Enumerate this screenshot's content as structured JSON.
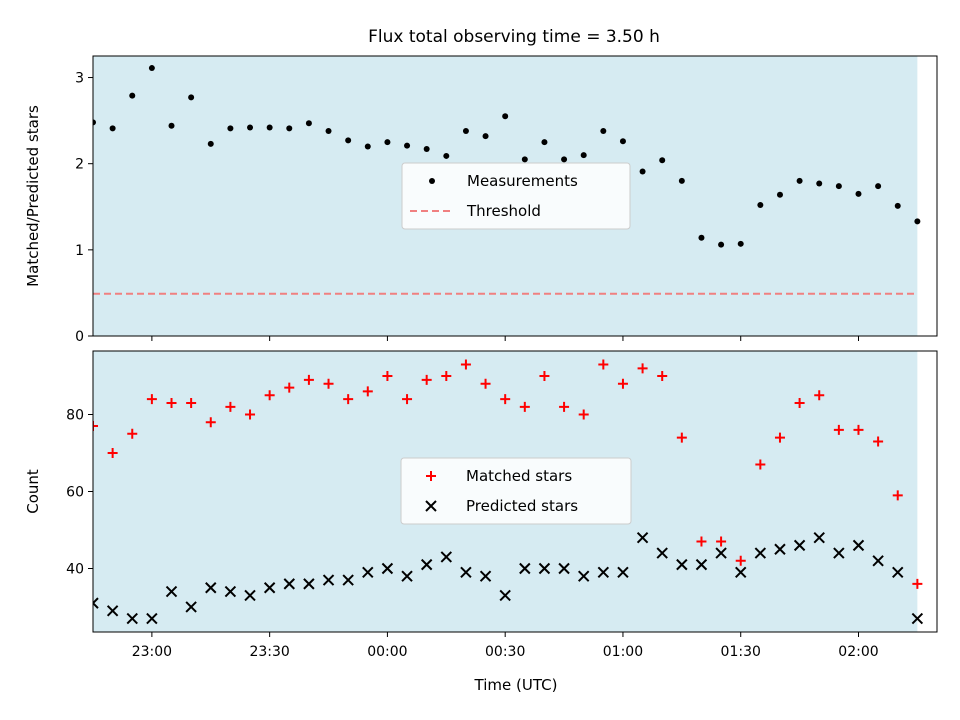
{
  "figure": {
    "title": "Flux total observing time = 3.50 h"
  },
  "chart_data": [
    {
      "type": "scatter",
      "title": "Flux total observing time = 3.50 h",
      "xlabel": "",
      "ylabel": "Matched/Predicted stars",
      "xlim": [
        "22:45",
        "02:20"
      ],
      "ylim": [
        0,
        3.25
      ],
      "yticks": [
        0,
        1,
        2,
        3
      ],
      "xticks": [
        "23:00",
        "23:30",
        "00:00",
        "00:30",
        "01:00",
        "01:30",
        "02:00"
      ],
      "x_tick_labels_shown": false,
      "shaded_span": {
        "from": "22:45",
        "to": "02:15",
        "color": "#add8e6"
      },
      "grid": false,
      "legend": "center",
      "series": [
        {
          "name": "Measurements",
          "marker": "dot",
          "color": "#000000",
          "x": [
            "22:45",
            "22:50",
            "22:55",
            "23:00",
            "23:05",
            "23:10",
            "23:15",
            "23:20",
            "23:25",
            "23:30",
            "23:35",
            "23:40",
            "23:45",
            "23:50",
            "23:55",
            "00:00",
            "00:05",
            "00:10",
            "00:15",
            "00:20",
            "00:25",
            "00:30",
            "00:35",
            "00:40",
            "00:45",
            "00:50",
            "00:55",
            "01:00",
            "01:05",
            "01:10",
            "01:15",
            "01:20",
            "01:25",
            "01:30",
            "01:35",
            "01:40",
            "01:45",
            "01:50",
            "01:55",
            "02:00",
            "02:05",
            "02:10",
            "02:15"
          ],
          "y": [
            2.48,
            2.41,
            2.79,
            3.11,
            2.44,
            2.77,
            2.23,
            2.41,
            2.42,
            2.42,
            2.41,
            2.47,
            2.38,
            2.27,
            2.2,
            2.25,
            2.21,
            2.17,
            2.09,
            2.38,
            2.32,
            2.55,
            2.05,
            2.25,
            2.05,
            2.1,
            2.38,
            2.26,
            1.91,
            2.04,
            1.8,
            1.14,
            1.06,
            1.07,
            1.52,
            1.64,
            1.8,
            1.77,
            1.74,
            1.65,
            1.74,
            1.51,
            1.33
          ]
        },
        {
          "name": "Threshold",
          "style": "dashed",
          "color": "#f08080",
          "x": [
            "22:45",
            "02:15"
          ],
          "y": [
            0.49,
            0.49
          ]
        }
      ]
    },
    {
      "type": "scatter",
      "title": "",
      "xlabel": "Time (UTC)",
      "ylabel": "Count",
      "xlim": [
        "22:45",
        "02:20"
      ],
      "ylim": [
        23.5,
        96.5
      ],
      "yticks": [
        40,
        60,
        80
      ],
      "xticks": [
        "23:00",
        "23:30",
        "00:00",
        "00:30",
        "01:00",
        "01:30",
        "02:00"
      ],
      "shaded_span": {
        "from": "22:45",
        "to": "02:15",
        "color": "#add8e6"
      },
      "grid": false,
      "legend": "center",
      "series": [
        {
          "name": "Matched stars",
          "marker": "plus",
          "color": "#ff0000",
          "x": [
            "22:45",
            "22:50",
            "22:55",
            "23:00",
            "23:05",
            "23:10",
            "23:15",
            "23:20",
            "23:25",
            "23:30",
            "23:35",
            "23:40",
            "23:45",
            "23:50",
            "23:55",
            "00:00",
            "00:05",
            "00:10",
            "00:15",
            "00:20",
            "00:25",
            "00:30",
            "00:35",
            "00:40",
            "00:45",
            "00:50",
            "00:55",
            "01:00",
            "01:05",
            "01:10",
            "01:15",
            "01:20",
            "01:25",
            "01:30",
            "01:35",
            "01:40",
            "01:45",
            "01:50",
            "01:55",
            "02:00",
            "02:05",
            "02:10",
            "02:15"
          ],
          "y": [
            77,
            70,
            75,
            84,
            83,
            83,
            78,
            82,
            80,
            85,
            87,
            89,
            88,
            84,
            86,
            90,
            84,
            89,
            90,
            93,
            88,
            84,
            82,
            90,
            82,
            80,
            93,
            88,
            92,
            90,
            74,
            47,
            47,
            42,
            67,
            74,
            83,
            85,
            76,
            76,
            73,
            59,
            36
          ]
        },
        {
          "name": "Predicted stars",
          "marker": "x",
          "color": "#000000",
          "x": [
            "22:45",
            "22:50",
            "22:55",
            "23:00",
            "23:05",
            "23:10",
            "23:15",
            "23:20",
            "23:25",
            "23:30",
            "23:35",
            "23:40",
            "23:45",
            "23:50",
            "23:55",
            "00:00",
            "00:05",
            "00:10",
            "00:15",
            "00:20",
            "00:25",
            "00:30",
            "00:35",
            "00:40",
            "00:45",
            "00:50",
            "00:55",
            "01:00",
            "01:05",
            "01:10",
            "01:15",
            "01:20",
            "01:25",
            "01:30",
            "01:35",
            "01:40",
            "01:45",
            "01:50",
            "01:55",
            "02:00",
            "02:05",
            "02:10",
            "02:15"
          ],
          "y": [
            31,
            29,
            27,
            27,
            34,
            30,
            35,
            34,
            33,
            35,
            36,
            36,
            37,
            37,
            39,
            40,
            38,
            41,
            43,
            39,
            38,
            33,
            40,
            40,
            40,
            38,
            39,
            39,
            48,
            44,
            41,
            41,
            44,
            39,
            44,
            45,
            46,
            48,
            44,
            46,
            42,
            39,
            27
          ]
        }
      ]
    }
  ]
}
